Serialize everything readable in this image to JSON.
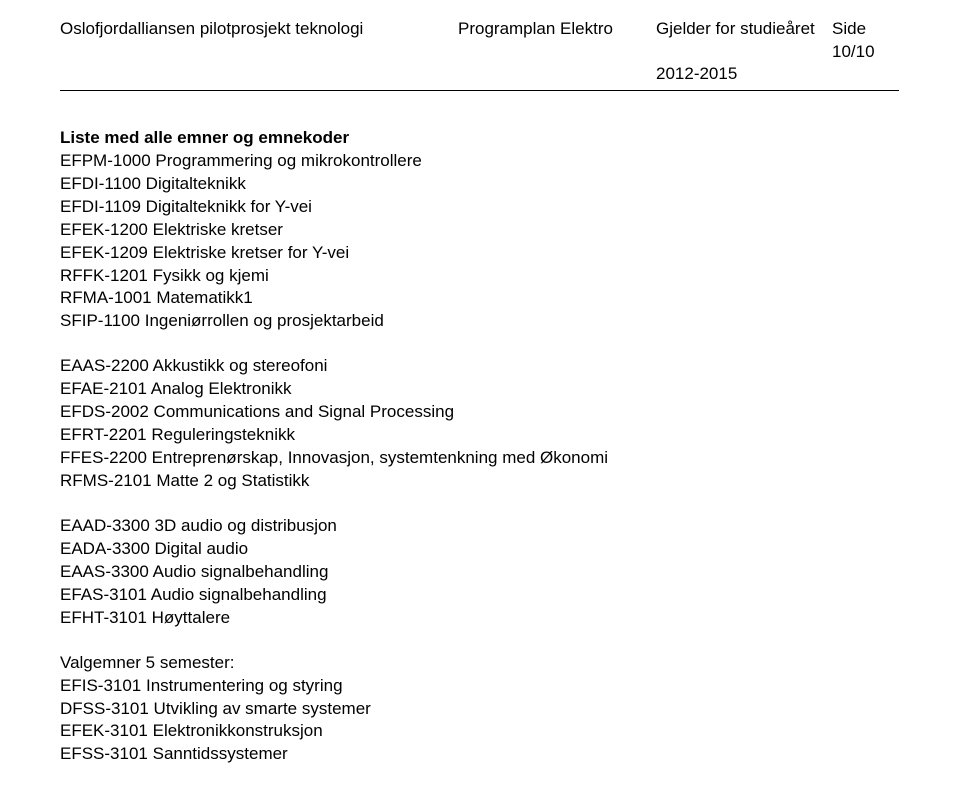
{
  "header": {
    "left": "Oslofjordalliansen pilotprosjekt teknologi",
    "mid": "Programplan Elektro",
    "right": "Gjelder for studieåret",
    "right_sub": "2012-2015",
    "side_prefix": "Side ",
    "side_page": "10/10"
  },
  "title": "Liste med alle emner og emnekoder",
  "block1": [
    "EFPM-1000 Programmering og mikrokontrollere",
    "EFDI-1100 Digitalteknikk",
    "EFDI-1109 Digitalteknikk for Y-vei",
    "EFEK-1200 Elektriske kretser",
    "EFEK-1209 Elektriske kretser for Y-vei",
    "RFFK-1201 Fysikk og kjemi",
    "RFMA-1001 Matematikk1",
    "SFIP-1100 Ingeniørrollen og prosjektarbeid"
  ],
  "block2": [
    "EAAS-2200 Akkustikk og stereofoni",
    "EFAE-2101 Analog Elektronikk",
    "EFDS-2002 Communications and Signal Processing",
    "EFRT-2201 Reguleringsteknikk",
    "FFES-2200 Entreprenørskap, Innovasjon, systemtenkning med Økonomi",
    "RFMS-2101 Matte 2 og Statistikk"
  ],
  "block3": [
    "EAAD-3300 3D audio og distribusjon",
    "EADA-3300 Digital audio",
    "EAAS-3300 Audio signalbehandling",
    "EFAS-3101 Audio signalbehandling",
    "EFHT-3101 Høyttalere"
  ],
  "block4_title": "Valgemner 5 semester:",
  "block4": [
    "EFIS-3101 Instrumentering og styring",
    "DFSS-3101 Utvikling av smarte systemer",
    "EFEK-3101 Elektronikkonstruksjon",
    "EFSS-3101 Sanntidssystemer"
  ]
}
